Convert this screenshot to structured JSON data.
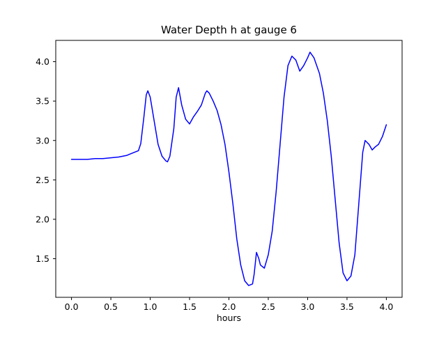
{
  "figure": {
    "background": "#ffffff"
  },
  "chart_data": {
    "type": "line",
    "title": "Water Depth h at gauge 6",
    "xlabel": "hours",
    "ylabel": "",
    "xlim": [
      -0.2,
      4.2
    ],
    "ylim": [
      1.01,
      4.27
    ],
    "xticks": [
      0.0,
      0.5,
      1.0,
      1.5,
      2.0,
      2.5,
      3.0,
      3.5,
      4.0
    ],
    "xtick_labels": [
      "0.0",
      "0.5",
      "1.0",
      "1.5",
      "2.0",
      "2.5",
      "3.0",
      "3.5",
      "4.0"
    ],
    "yticks": [
      1.5,
      2.0,
      2.5,
      3.0,
      3.5,
      4.0
    ],
    "ytick_labels": [
      "1.5",
      "2.0",
      "2.5",
      "3.0",
      "3.5",
      "4.0"
    ],
    "grid": false,
    "legend": null,
    "line_color": "#0000ff",
    "line_width": 1.5,
    "series": [
      {
        "name": "water depth h",
        "points": [
          [
            0.0,
            2.76
          ],
          [
            0.1,
            2.76
          ],
          [
            0.2,
            2.76
          ],
          [
            0.3,
            2.77
          ],
          [
            0.4,
            2.77
          ],
          [
            0.5,
            2.78
          ],
          [
            0.6,
            2.79
          ],
          [
            0.7,
            2.81
          ],
          [
            0.75,
            2.83
          ],
          [
            0.8,
            2.85
          ],
          [
            0.85,
            2.87
          ],
          [
            0.88,
            2.96
          ],
          [
            0.92,
            3.3
          ],
          [
            0.95,
            3.58
          ],
          [
            0.97,
            3.63
          ],
          [
            1.0,
            3.55
          ],
          [
            1.05,
            3.25
          ],
          [
            1.1,
            2.95
          ],
          [
            1.15,
            2.8
          ],
          [
            1.2,
            2.74
          ],
          [
            1.22,
            2.73
          ],
          [
            1.25,
            2.8
          ],
          [
            1.3,
            3.15
          ],
          [
            1.33,
            3.55
          ],
          [
            1.36,
            3.67
          ],
          [
            1.4,
            3.45
          ],
          [
            1.45,
            3.27
          ],
          [
            1.5,
            3.21
          ],
          [
            1.55,
            3.3
          ],
          [
            1.6,
            3.37
          ],
          [
            1.65,
            3.45
          ],
          [
            1.7,
            3.6
          ],
          [
            1.72,
            3.63
          ],
          [
            1.75,
            3.6
          ],
          [
            1.8,
            3.5
          ],
          [
            1.85,
            3.38
          ],
          [
            1.9,
            3.2
          ],
          [
            1.95,
            2.95
          ],
          [
            2.0,
            2.6
          ],
          [
            2.05,
            2.2
          ],
          [
            2.1,
            1.75
          ],
          [
            2.15,
            1.42
          ],
          [
            2.2,
            1.22
          ],
          [
            2.25,
            1.16
          ],
          [
            2.3,
            1.18
          ],
          [
            2.32,
            1.3
          ],
          [
            2.35,
            1.58
          ],
          [
            2.38,
            1.5
          ],
          [
            2.4,
            1.42
          ],
          [
            2.45,
            1.38
          ],
          [
            2.5,
            1.55
          ],
          [
            2.55,
            1.85
          ],
          [
            2.6,
            2.35
          ],
          [
            2.65,
            2.95
          ],
          [
            2.7,
            3.55
          ],
          [
            2.75,
            3.95
          ],
          [
            2.8,
            4.07
          ],
          [
            2.85,
            4.02
          ],
          [
            2.9,
            3.88
          ],
          [
            2.95,
            3.95
          ],
          [
            3.0,
            4.05
          ],
          [
            3.03,
            4.12
          ],
          [
            3.08,
            4.05
          ],
          [
            3.15,
            3.85
          ],
          [
            3.2,
            3.6
          ],
          [
            3.25,
            3.25
          ],
          [
            3.3,
            2.8
          ],
          [
            3.35,
            2.25
          ],
          [
            3.4,
            1.7
          ],
          [
            3.45,
            1.32
          ],
          [
            3.5,
            1.22
          ],
          [
            3.55,
            1.28
          ],
          [
            3.6,
            1.55
          ],
          [
            3.65,
            2.2
          ],
          [
            3.7,
            2.85
          ],
          [
            3.73,
            3.0
          ],
          [
            3.78,
            2.95
          ],
          [
            3.82,
            2.88
          ],
          [
            3.86,
            2.92
          ],
          [
            3.9,
            2.95
          ],
          [
            3.95,
            3.05
          ],
          [
            4.0,
            3.2
          ]
        ]
      }
    ]
  }
}
